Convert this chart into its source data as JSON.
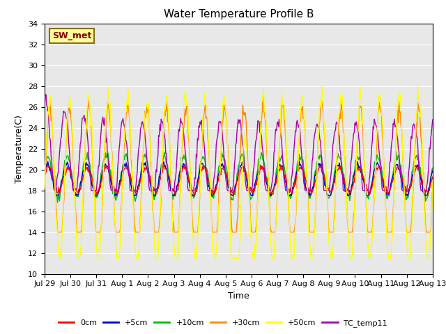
{
  "title": "Water Temperature Profile B",
  "xlabel": "Time",
  "ylabel": "Temperature(C)",
  "ylim": [
    10,
    34
  ],
  "yticks": [
    10,
    12,
    14,
    16,
    18,
    20,
    22,
    24,
    26,
    28,
    30,
    32,
    34
  ],
  "annotation_label": "SW_met",
  "annotation_color": "#8B0000",
  "annotation_bg": "#FFFF99",
  "annotation_border": "#8B6914",
  "plot_bg_color": "#E8E8E8",
  "series_colors": {
    "0cm": "#FF0000",
    "+5cm": "#0000CC",
    "+10cm": "#00BB00",
    "+30cm": "#FF8800",
    "+50cm": "#FFFF00",
    "TC_temp11": "#AA00AA"
  },
  "x_tick_labels": [
    "Jul 29",
    "Jul 30",
    "Jul 31",
    "Aug 1",
    "Aug 2",
    "Aug 3",
    "Aug 4",
    "Aug 5",
    "Aug 6",
    "Aug 7",
    "Aug 8",
    "Aug 9",
    "Aug 10",
    "Aug 11",
    "Aug 12",
    "Aug 13"
  ],
  "legend_entries": [
    "0cm",
    "+5cm",
    "+10cm",
    "+30cm",
    "+50cm",
    "TC_temp11"
  ]
}
